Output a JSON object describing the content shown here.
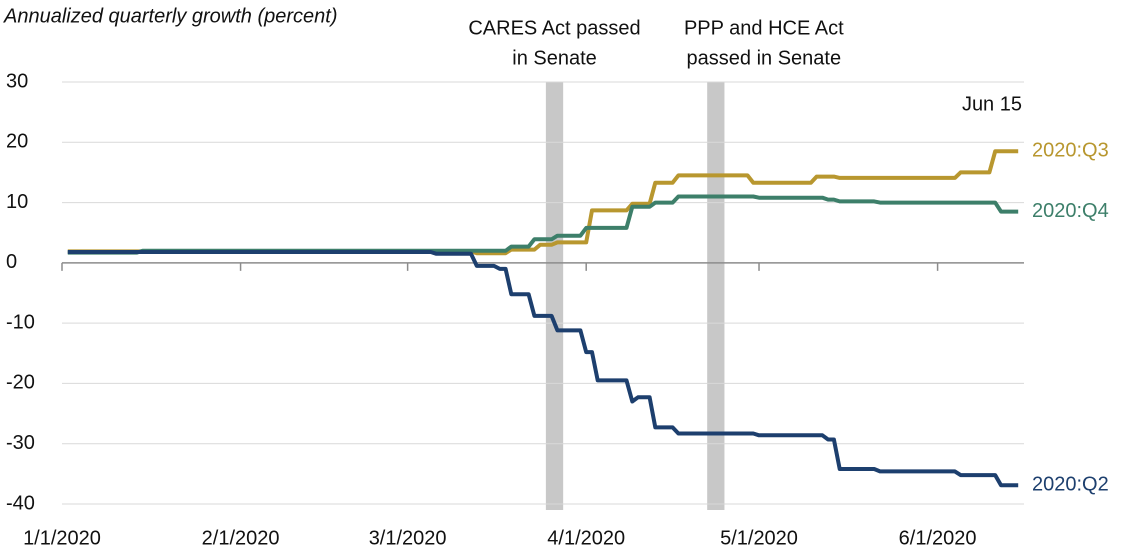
{
  "chart_data": {
    "type": "line",
    "y_label": "Annualized quarterly growth (percent)",
    "annotation": "Jun 15",
    "xlim": [
      "1/1/2020",
      "6/16/2020"
    ],
    "xticks": [
      "1/1/2020",
      "2/1/2020",
      "3/1/2020",
      "4/1/2020",
      "5/1/2020",
      "6/1/2020"
    ],
    "ylim": [
      -40,
      30
    ],
    "yticks": [
      -40,
      -30,
      -20,
      -10,
      0,
      10,
      20,
      30
    ],
    "grid": true,
    "shades": [
      {
        "lines": [
          "CARES Act passed",
          "in Senate"
        ],
        "start": "3/25/2020",
        "end": "3/28/2020",
        "color": "#c8c8c8"
      },
      {
        "lines": [
          "PPP and HCE Act",
          "passed in Senate"
        ],
        "start": "4/22/2020",
        "end": "4/25/2020",
        "color": "#c8c8c8"
      }
    ],
    "series": [
      {
        "name": "2020:Q3",
        "color": "#b8972f",
        "x": [
          "1/2/2020",
          "3/12/2020",
          "3/13/2020",
          "3/18/2020",
          "3/19/2020",
          "3/23/2020",
          "3/24/2020",
          "3/26/2020",
          "3/27/2020",
          "4/1/2020",
          "4/2/2020",
          "4/8/2020",
          "4/9/2020",
          "4/12/2020",
          "4/13/2020",
          "4/16/2020",
          "4/17/2020",
          "4/29/2020",
          "4/30/2020",
          "5/10/2020",
          "5/11/2020",
          "5/14/2020",
          "5/15/2020",
          "6/4/2020",
          "6/5/2020",
          "6/10/2020",
          "6/11/2020",
          "6/15/2020"
        ],
        "values": [
          1.9,
          1.9,
          1.6,
          1.6,
          2.2,
          2.2,
          3.0,
          3.0,
          3.4,
          3.4,
          8.7,
          8.7,
          9.8,
          9.8,
          13.3,
          13.3,
          14.5,
          14.5,
          13.3,
          13.3,
          14.3,
          14.3,
          14.1,
          14.1,
          15.0,
          15.0,
          18.5,
          18.5
        ]
      },
      {
        "name": "2020:Q4",
        "color": "#3d7f6a",
        "x": [
          "1/2/2020",
          "1/14/2020",
          "1/15/2020",
          "3/18/2020",
          "3/19/2020",
          "3/22/2020",
          "3/23/2020",
          "3/26/2020",
          "3/27/2020",
          "3/31/2020",
          "4/1/2020",
          "4/8/2020",
          "4/9/2020",
          "4/12/2020",
          "4/13/2020",
          "4/16/2020",
          "4/17/2020",
          "4/30/2020",
          "5/1/2020",
          "5/12/2020",
          "5/13/2020",
          "5/14/2020",
          "5/15/2020",
          "5/21/2020",
          "5/22/2020",
          "6/11/2020",
          "6/12/2020",
          "6/15/2020"
        ],
        "values": [
          1.7,
          1.7,
          2.0,
          2.0,
          2.7,
          2.7,
          3.9,
          3.9,
          4.5,
          4.5,
          5.8,
          5.8,
          9.3,
          9.3,
          10.0,
          10.0,
          11.0,
          11.0,
          10.8,
          10.8,
          10.5,
          10.5,
          10.2,
          10.2,
          10.0,
          10.0,
          8.5,
          8.5
        ]
      },
      {
        "name": "2020:Q2",
        "color": "#1d3f6e",
        "x": [
          "1/2/2020",
          "3/5/2020",
          "3/6/2020",
          "3/12/2020",
          "3/13/2020",
          "3/16/2020",
          "3/17/2020",
          "3/18/2020",
          "3/19/2020",
          "3/22/2020",
          "3/23/2020",
          "3/26/2020",
          "3/27/2020",
          "3/31/2020",
          "4/1/2020",
          "4/2/2020",
          "4/3/2020",
          "4/8/2020",
          "4/9/2020",
          "4/10/2020",
          "4/12/2020",
          "4/13/2020",
          "4/16/2020",
          "4/17/2020",
          "4/30/2020",
          "5/1/2020",
          "5/12/2020",
          "5/13/2020",
          "5/14/2020",
          "5/15/2020",
          "5/21/2020",
          "5/22/2020",
          "6/4/2020",
          "6/5/2020",
          "6/11/2020",
          "6/12/2020",
          "6/15/2020"
        ],
        "values": [
          1.8,
          1.8,
          1.5,
          1.5,
          -0.5,
          -0.5,
          -1.0,
          -1.0,
          -5.2,
          -5.2,
          -8.8,
          -8.8,
          -11.2,
          -11.2,
          -14.8,
          -14.8,
          -19.5,
          -19.5,
          -23.0,
          -22.3,
          -22.3,
          -27.3,
          -27.3,
          -28.3,
          -28.3,
          -28.6,
          -28.6,
          -29.3,
          -29.3,
          -34.2,
          -34.2,
          -34.6,
          -34.6,
          -35.2,
          -35.2,
          -36.9,
          -36.9
        ]
      }
    ]
  }
}
